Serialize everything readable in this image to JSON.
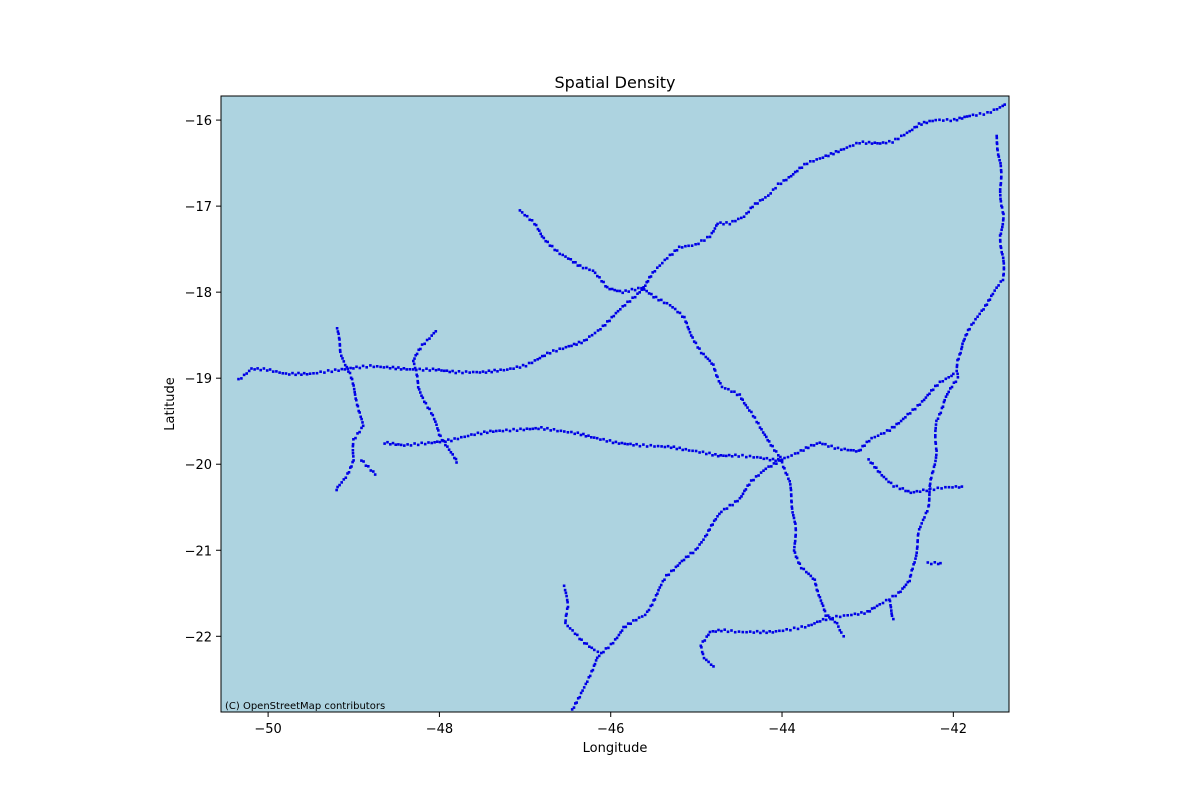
{
  "chart_data": {
    "type": "scatter",
    "title": "Spatial Density",
    "xlabel": "Longitude",
    "ylabel": "Latitude",
    "xlim": [
      -50.55,
      -41.35
    ],
    "ylim": [
      -22.88,
      -15.72
    ],
    "xticks": [
      -50,
      -48,
      -46,
      -44,
      -42
    ],
    "yticks": [
      -16,
      -17,
      -18,
      -19,
      -20,
      -21,
      -22
    ],
    "xtick_labels": [
      "−50",
      "−48",
      "−46",
      "−44",
      "−42"
    ],
    "ytick_labels": [
      "−16",
      "−17",
      "−18",
      "−19",
      "−20",
      "−21",
      "−22"
    ],
    "grid": false,
    "background_color": "#add3e0",
    "point_color": "#0000e6",
    "attribution": "(C) OpenStreetMap contributors",
    "tracks": [
      {
        "points": [
          [
            -50.35,
            -19.02
          ],
          [
            -50.2,
            -18.89
          ],
          [
            -50.0,
            -18.9
          ],
          [
            -49.8,
            -18.95
          ],
          [
            -49.5,
            -18.95
          ],
          [
            -49.3,
            -18.92
          ],
          [
            -49.0,
            -18.88
          ],
          [
            -48.8,
            -18.86
          ],
          [
            -48.55,
            -18.88
          ],
          [
            -48.3,
            -18.9
          ],
          [
            -48.05,
            -18.9
          ],
          [
            -47.8,
            -18.93
          ],
          [
            -47.5,
            -18.93
          ],
          [
            -47.2,
            -18.9
          ],
          [
            -47.0,
            -18.85
          ],
          [
            -46.85,
            -18.78
          ],
          [
            -46.7,
            -18.7
          ],
          [
            -46.5,
            -18.63
          ],
          [
            -46.3,
            -18.57
          ],
          [
            -46.15,
            -18.45
          ],
          [
            -46.05,
            -18.35
          ],
          [
            -45.85,
            -18.17
          ],
          [
            -45.72,
            -18.05
          ],
          [
            -45.6,
            -17.92
          ],
          [
            -45.5,
            -17.78
          ],
          [
            -45.35,
            -17.6
          ],
          [
            -45.2,
            -17.48
          ],
          [
            -45.0,
            -17.45
          ],
          [
            -44.85,
            -17.35
          ],
          [
            -44.75,
            -17.2
          ],
          [
            -44.6,
            -17.2
          ],
          [
            -44.45,
            -17.12
          ],
          [
            -44.35,
            -17.0
          ],
          [
            -44.15,
            -16.88
          ],
          [
            -44.05,
            -16.75
          ],
          [
            -43.9,
            -16.65
          ],
          [
            -43.7,
            -16.5
          ],
          [
            -43.5,
            -16.42
          ],
          [
            -43.3,
            -16.35
          ],
          [
            -43.1,
            -16.26
          ],
          [
            -42.85,
            -16.27
          ],
          [
            -42.7,
            -16.25
          ],
          [
            -42.55,
            -16.15
          ],
          [
            -42.4,
            -16.05
          ],
          [
            -42.2,
            -16.0
          ],
          [
            -42.0,
            -16.0
          ],
          [
            -41.8,
            -15.95
          ],
          [
            -41.6,
            -15.92
          ],
          [
            -41.4,
            -15.82
          ]
        ]
      },
      {
        "points": [
          [
            -41.5,
            -16.18
          ],
          [
            -41.45,
            -16.5
          ],
          [
            -41.45,
            -16.8
          ],
          [
            -41.42,
            -17.1
          ],
          [
            -41.45,
            -17.35
          ],
          [
            -41.42,
            -17.6
          ],
          [
            -41.42,
            -17.85
          ],
          [
            -41.55,
            -18.05
          ],
          [
            -41.7,
            -18.25
          ],
          [
            -41.8,
            -18.42
          ],
          [
            -41.9,
            -18.6
          ],
          [
            -41.95,
            -18.8
          ],
          [
            -41.95,
            -18.95
          ]
        ]
      },
      {
        "points": [
          [
            -47.05,
            -17.05
          ],
          [
            -46.9,
            -17.2
          ],
          [
            -46.8,
            -17.35
          ],
          [
            -46.6,
            -17.55
          ],
          [
            -46.35,
            -17.7
          ],
          [
            -46.2,
            -17.75
          ],
          [
            -46.05,
            -17.95
          ],
          [
            -45.85,
            -18.0
          ],
          [
            -45.65,
            -17.95
          ],
          [
            -45.5,
            -18.05
          ],
          [
            -45.3,
            -18.15
          ],
          [
            -45.15,
            -18.3
          ],
          [
            -45.05,
            -18.5
          ],
          [
            -44.95,
            -18.7
          ],
          [
            -44.8,
            -18.85
          ],
          [
            -44.7,
            -19.1
          ],
          [
            -44.5,
            -19.2
          ],
          [
            -44.35,
            -19.4
          ],
          [
            -44.25,
            -19.6
          ],
          [
            -44.1,
            -19.8
          ],
          [
            -44.0,
            -19.95
          ]
        ]
      },
      {
        "points": [
          [
            -49.2,
            -18.42
          ],
          [
            -49.15,
            -18.7
          ],
          [
            -49.05,
            -18.95
          ],
          [
            -48.95,
            -19.3
          ],
          [
            -48.9,
            -19.55
          ],
          [
            -49.0,
            -19.72
          ],
          [
            -49.0,
            -19.95
          ],
          [
            -49.1,
            -20.15
          ],
          [
            -49.2,
            -20.3
          ]
        ]
      },
      {
        "points": [
          [
            -48.9,
            -19.95
          ],
          [
            -48.75,
            -20.12
          ]
        ]
      },
      {
        "points": [
          [
            -48.05,
            -18.45
          ],
          [
            -48.2,
            -18.62
          ],
          [
            -48.3,
            -18.8
          ],
          [
            -48.25,
            -19.1
          ],
          [
            -48.1,
            -19.4
          ],
          [
            -48.0,
            -19.65
          ],
          [
            -47.9,
            -19.8
          ],
          [
            -47.8,
            -19.98
          ]
        ]
      },
      {
        "points": [
          [
            -48.65,
            -19.75
          ],
          [
            -48.4,
            -19.78
          ],
          [
            -48.1,
            -19.75
          ],
          [
            -47.85,
            -19.72
          ],
          [
            -47.6,
            -19.65
          ],
          [
            -47.4,
            -19.62
          ],
          [
            -47.1,
            -19.6
          ],
          [
            -46.8,
            -19.58
          ],
          [
            -46.55,
            -19.62
          ],
          [
            -46.35,
            -19.65
          ],
          [
            -46.15,
            -19.7
          ],
          [
            -45.95,
            -19.75
          ],
          [
            -45.65,
            -19.78
          ],
          [
            -45.3,
            -19.8
          ],
          [
            -45.0,
            -19.85
          ],
          [
            -44.75,
            -19.9
          ],
          [
            -44.5,
            -19.9
          ],
          [
            -44.3,
            -19.92
          ],
          [
            -44.1,
            -19.95
          ],
          [
            -44.0,
            -19.95
          ]
        ]
      },
      {
        "points": [
          [
            -44.0,
            -19.95
          ],
          [
            -43.85,
            -19.88
          ],
          [
            -43.7,
            -19.8
          ],
          [
            -43.55,
            -19.75
          ],
          [
            -43.35,
            -19.82
          ],
          [
            -43.1,
            -19.85
          ],
          [
            -42.95,
            -19.7
          ],
          [
            -42.75,
            -19.6
          ],
          [
            -42.6,
            -19.5
          ],
          [
            -42.45,
            -19.35
          ],
          [
            -42.3,
            -19.2
          ],
          [
            -42.15,
            -19.05
          ],
          [
            -42.0,
            -18.95
          ]
        ]
      },
      {
        "points": [
          [
            -43.0,
            -19.95
          ],
          [
            -42.85,
            -20.1
          ],
          [
            -42.7,
            -20.25
          ],
          [
            -42.5,
            -20.33
          ],
          [
            -42.3,
            -20.3
          ],
          [
            -42.1,
            -20.27
          ],
          [
            -41.9,
            -20.26
          ]
        ]
      },
      {
        "points": [
          [
            -41.95,
            -19.0
          ],
          [
            -42.1,
            -19.25
          ],
          [
            -42.2,
            -19.5
          ],
          [
            -42.2,
            -19.85
          ],
          [
            -42.25,
            -20.15
          ],
          [
            -42.3,
            -20.5
          ],
          [
            -42.4,
            -20.8
          ],
          [
            -42.45,
            -21.1
          ],
          [
            -42.5,
            -21.35
          ],
          [
            -42.65,
            -21.5
          ],
          [
            -42.85,
            -21.63
          ],
          [
            -43.0,
            -21.72
          ],
          [
            -43.2,
            -21.75
          ],
          [
            -43.4,
            -21.78
          ],
          [
            -43.55,
            -21.82
          ],
          [
            -43.7,
            -21.88
          ],
          [
            -43.9,
            -21.92
          ],
          [
            -44.1,
            -21.95
          ],
          [
            -44.3,
            -21.95
          ],
          [
            -44.5,
            -21.95
          ],
          [
            -44.7,
            -21.93
          ],
          [
            -44.85,
            -21.95
          ],
          [
            -44.95,
            -22.1
          ],
          [
            -44.9,
            -22.25
          ],
          [
            -44.8,
            -22.35
          ]
        ]
      },
      {
        "points": [
          [
            -42.3,
            -21.15
          ],
          [
            -42.15,
            -21.15
          ]
        ]
      },
      {
        "points": [
          [
            -42.75,
            -21.6
          ],
          [
            -42.7,
            -21.8
          ]
        ]
      },
      {
        "points": [
          [
            -44.0,
            -19.95
          ],
          [
            -43.92,
            -20.2
          ],
          [
            -43.88,
            -20.45
          ],
          [
            -43.85,
            -20.7
          ],
          [
            -43.85,
            -21.0
          ],
          [
            -43.78,
            -21.2
          ],
          [
            -43.62,
            -21.35
          ],
          [
            -43.55,
            -21.55
          ],
          [
            -43.5,
            -21.75
          ],
          [
            -43.35,
            -21.85
          ],
          [
            -43.28,
            -22.0
          ]
        ]
      },
      {
        "points": [
          [
            -44.0,
            -19.95
          ],
          [
            -44.2,
            -20.05
          ],
          [
            -44.35,
            -20.2
          ],
          [
            -44.5,
            -20.4
          ],
          [
            -44.7,
            -20.55
          ],
          [
            -44.85,
            -20.75
          ],
          [
            -45.0,
            -21.0
          ],
          [
            -45.2,
            -21.15
          ],
          [
            -45.35,
            -21.3
          ],
          [
            -45.45,
            -21.5
          ],
          [
            -45.6,
            -21.75
          ],
          [
            -45.85,
            -21.9
          ],
          [
            -46.0,
            -22.1
          ],
          [
            -46.15,
            -22.25
          ],
          [
            -46.25,
            -22.45
          ],
          [
            -46.35,
            -22.7
          ],
          [
            -46.45,
            -22.85
          ]
        ]
      },
      {
        "points": [
          [
            -46.55,
            -21.42
          ],
          [
            -46.5,
            -21.65
          ],
          [
            -46.52,
            -21.85
          ],
          [
            -46.35,
            -22.05
          ],
          [
            -46.15,
            -22.18
          ]
        ]
      }
    ]
  }
}
